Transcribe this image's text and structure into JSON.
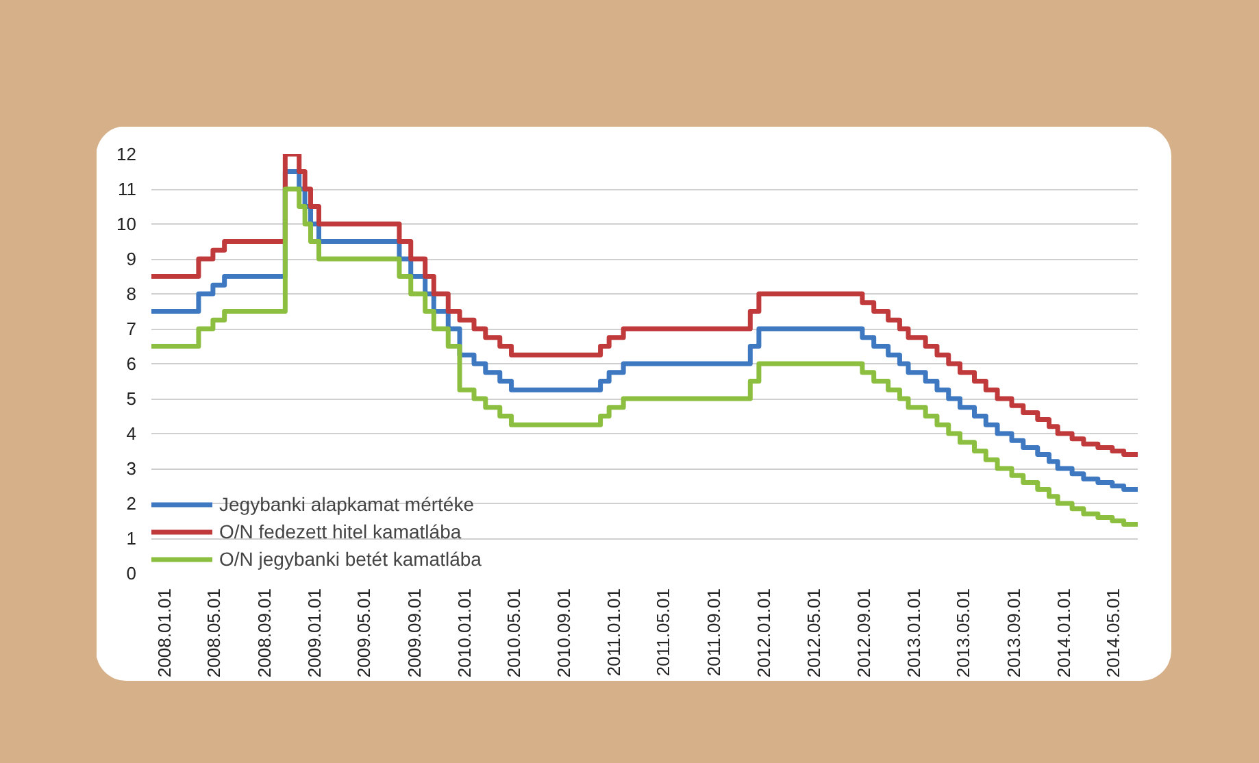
{
  "chart_data": {
    "type": "step",
    "grid": "y",
    "legend": "bottom left",
    "line_style": "solid",
    "marker": "none",
    "ylim": [
      0,
      12
    ],
    "yticks": [
      0,
      1,
      2,
      3,
      4,
      5,
      6,
      7,
      8,
      9,
      10,
      11,
      12
    ],
    "xlim": [
      "2007-12-01",
      "2014-06-30"
    ],
    "xticks": [
      {
        "value": "2008-01-01",
        "label": "2008.01.01"
      },
      {
        "value": "2008-05-01",
        "label": "2008.05.01"
      },
      {
        "value": "2008-09-01",
        "label": "2008.09.01"
      },
      {
        "value": "2009-01-01",
        "label": "2009.01.01"
      },
      {
        "value": "2009-05-01",
        "label": "2009.05.01"
      },
      {
        "value": "2009-09-01",
        "label": "2009.09.01"
      },
      {
        "value": "2010-01-01",
        "label": "2010.01.01"
      },
      {
        "value": "2010-05-01",
        "label": "2010.05.01"
      },
      {
        "value": "2010-09-01",
        "label": "2010.09.01"
      },
      {
        "value": "2011-01-01",
        "label": "2011.01.01"
      },
      {
        "value": "2011-05-01",
        "label": "2011.05.01"
      },
      {
        "value": "2011-09-01",
        "label": "2011.09.01"
      },
      {
        "value": "2012-01-01",
        "label": "2012.01.01"
      },
      {
        "value": "2012-05-01",
        "label": "2012.05.01"
      },
      {
        "value": "2012-09-01",
        "label": "2012.09.01"
      },
      {
        "value": "2013-01-01",
        "label": "2013.01.01"
      },
      {
        "value": "2013-05-01",
        "label": "2013.05.01"
      },
      {
        "value": "2013-09-01",
        "label": "2013.09.01"
      },
      {
        "value": "2014-01-01",
        "label": "2014.01.01"
      },
      {
        "value": "2014-05-01",
        "label": "2014.05.01"
      }
    ],
    "x": [
      "2007-12-01",
      "2008-03-25",
      "2008-04-29",
      "2008-05-27",
      "2008-10-22",
      "2008-11-25",
      "2008-12-09",
      "2008-12-23",
      "2009-01-12",
      "2009-07-27",
      "2009-08-24",
      "2009-09-28",
      "2009-10-19",
      "2009-11-23",
      "2009-12-21",
      "2010-01-25",
      "2010-02-22",
      "2010-03-29",
      "2010-04-26",
      "2010-11-29",
      "2010-12-20",
      "2011-01-24",
      "2011-11-29",
      "2011-12-20",
      "2012-08-28",
      "2012-09-25",
      "2012-10-30",
      "2012-11-27",
      "2012-12-18",
      "2013-01-29",
      "2013-02-26",
      "2013-03-26",
      "2013-04-23",
      "2013-05-28",
      "2013-06-25",
      "2013-07-23",
      "2013-08-27",
      "2013-09-24",
      "2013-10-29",
      "2013-11-26",
      "2013-12-17",
      "2014-01-21",
      "2014-02-18",
      "2014-03-25",
      "2014-04-29",
      "2014-05-27",
      "2014-06-30"
    ],
    "series": [
      {
        "name": "Jegybanki alapkamat mértéke",
        "color": "#3d78c1",
        "values": [
          7.5,
          8.0,
          8.25,
          8.5,
          11.5,
          11.0,
          10.5,
          10.0,
          9.5,
          9.0,
          8.5,
          8.0,
          7.5,
          7.0,
          6.25,
          6.0,
          5.75,
          5.5,
          5.25,
          5.5,
          5.75,
          6.0,
          6.5,
          7.0,
          6.75,
          6.5,
          6.25,
          6.0,
          5.75,
          5.5,
          5.25,
          5.0,
          4.75,
          4.5,
          4.25,
          4.0,
          3.8,
          3.6,
          3.4,
          3.2,
          3.0,
          2.85,
          2.7,
          2.6,
          2.5,
          2.4,
          2.4
        ]
      },
      {
        "name": "O/N fedezett hitel kamatlába",
        "color": "#c0393b",
        "values": [
          8.5,
          9.0,
          9.25,
          9.5,
          12.0,
          11.5,
          11.0,
          10.5,
          10.0,
          9.5,
          9.0,
          8.5,
          8.0,
          7.5,
          7.25,
          7.0,
          6.75,
          6.5,
          6.25,
          6.5,
          6.75,
          7.0,
          7.5,
          8.0,
          7.75,
          7.5,
          7.25,
          7.0,
          6.75,
          6.5,
          6.25,
          6.0,
          5.75,
          5.5,
          5.25,
          5.0,
          4.8,
          4.6,
          4.4,
          4.2,
          4.0,
          3.85,
          3.7,
          3.6,
          3.5,
          3.4,
          3.4
        ]
      },
      {
        "name": "O/N jegybanki betét kamatlába",
        "color": "#8cbf3f",
        "values": [
          6.5,
          7.0,
          7.25,
          7.5,
          11.0,
          10.5,
          10.0,
          9.5,
          9.0,
          8.5,
          8.0,
          7.5,
          7.0,
          6.5,
          5.25,
          5.0,
          4.75,
          4.5,
          4.25,
          4.5,
          4.75,
          5.0,
          5.5,
          6.0,
          5.75,
          5.5,
          5.25,
          5.0,
          4.75,
          4.5,
          4.25,
          4.0,
          3.75,
          3.5,
          3.25,
          3.0,
          2.8,
          2.6,
          2.4,
          2.2,
          2.0,
          1.85,
          1.7,
          1.6,
          1.5,
          1.4,
          1.4
        ]
      }
    ]
  }
}
